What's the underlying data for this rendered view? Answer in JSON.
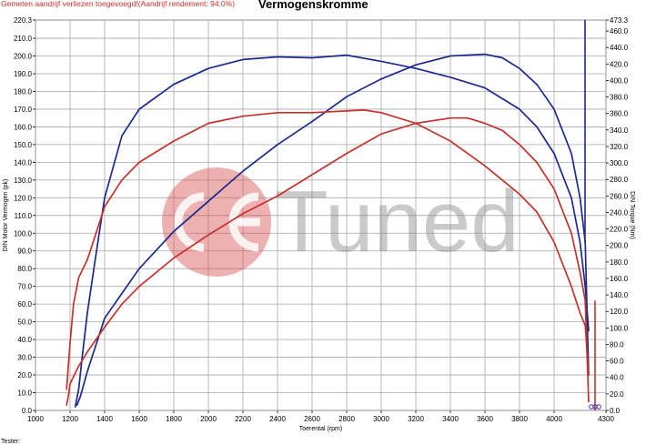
{
  "header": {
    "note": "Gemeten aandrijf verliezen toegevoegd!(Aandrijf rendement: 94.0%)",
    "title": "Vermogenskromme"
  },
  "footer": {
    "tester_label": "Tester:"
  },
  "watermark": {
    "text": "Tuned",
    "logo": "CE"
  },
  "colors": {
    "blue": "#1b2a8f",
    "red": "#c7312c",
    "grid": "#a8a8a8"
  },
  "chart_data": {
    "type": "line",
    "xlabel": "Toerental (rpm)",
    "ylabel_left": "DIN Motor Vermogen (pk)",
    "ylabel_right": "DIN Torque (Nm)",
    "xlim": [
      1000,
      4300
    ],
    "ylim_left": [
      0,
      220.3
    ],
    "ylim_right": [
      0,
      473.3
    ],
    "x_ticks": [
      "1000",
      "1200",
      "1400",
      "1600",
      "1800",
      "2000",
      "2200",
      "2400",
      "2600",
      "2800",
      "3000",
      "3200",
      "3400",
      "3600",
      "3800",
      "4000",
      "4300"
    ],
    "y_left_ticks": [
      "0.0",
      "10.0",
      "20.0",
      "30.0",
      "40.0",
      "50.0",
      "60.0",
      "70.0",
      "80.0",
      "90.0",
      "100.0",
      "110.0",
      "120.0",
      "130.0",
      "140.0",
      "150.0",
      "160.0",
      "170.0",
      "180.0",
      "190.0",
      "200.0",
      "210.0",
      "220.3"
    ],
    "y_right_ticks": [
      "0.0",
      "20.0",
      "40.0",
      "60.0",
      "80.0",
      "100.0",
      "120.0",
      "140.0",
      "160.0",
      "180.0",
      "200.0",
      "220.0",
      "240.0",
      "260.0",
      "280.0",
      "300.0",
      "320.0",
      "340.0",
      "360.0",
      "380.0",
      "400.0",
      "420.0",
      "440.0",
      "460.0",
      "473.3"
    ],
    "series": [
      {
        "axis": "left",
        "color": "#1b2a8f",
        "x": [
          1230,
          1250,
          1270,
          1300,
          1350,
          1400,
          1500,
          1600,
          1800,
          2000,
          2200,
          2400,
          2600,
          2800,
          3000,
          3200,
          3400,
          3600,
          3800,
          3900,
          4000,
          4100,
          4150,
          4180,
          4200
        ],
        "y": [
          2,
          12,
          30,
          55,
          88,
          120,
          155,
          170,
          184,
          193,
          198,
          199.5,
          199,
          200.5,
          197,
          193,
          188,
          182,
          170,
          160,
          145,
          120,
          95,
          70,
          45
        ]
      },
      {
        "axis": "left",
        "color": "#1b2a8f",
        "x": [
          1240,
          1260,
          1300,
          1400,
          1600,
          1800,
          2000,
          2200,
          2400,
          2600,
          2800,
          3000,
          3200,
          3400,
          3600,
          3700,
          3800,
          3900,
          4000,
          4100,
          4150,
          4180,
          4200
        ],
        "y": [
          3,
          8,
          22,
          52,
          80,
          101,
          118,
          135,
          150,
          163,
          177,
          187,
          195,
          200,
          201,
          199,
          193,
          184,
          170,
          145,
          120,
          95,
          20
        ]
      },
      {
        "axis": "left",
        "color": "#c7312c",
        "x": [
          1180,
          1200,
          1220,
          1250,
          1300,
          1350,
          1400,
          1500,
          1600,
          1800,
          2000,
          2200,
          2400,
          2600,
          2800,
          2900,
          3000,
          3200,
          3400,
          3600,
          3800,
          3900,
          4000,
          4100,
          4150,
          4180,
          4200
        ],
        "y": [
          12,
          38,
          60,
          75,
          85,
          100,
          115,
          130,
          140,
          152,
          162,
          166,
          168,
          168,
          169,
          169.5,
          168,
          162,
          152,
          138,
          122,
          112,
          95,
          70,
          55,
          48,
          20
        ]
      },
      {
        "axis": "left",
        "color": "#c7312c",
        "x": [
          1180,
          1190,
          1200,
          1250,
          1300,
          1400,
          1500,
          1600,
          1800,
          2000,
          2200,
          2400,
          2600,
          2800,
          3000,
          3200,
          3400,
          3500,
          3600,
          3700,
          3800,
          3900,
          4000,
          4100,
          4150,
          4180,
          4200
        ],
        "y": [
          3,
          8,
          15,
          25,
          33,
          47,
          60,
          70,
          86,
          99,
          111,
          121,
          133,
          145,
          156,
          162,
          165,
          165,
          162,
          158,
          150,
          140,
          125,
          100,
          78,
          62,
          5
        ]
      }
    ]
  }
}
